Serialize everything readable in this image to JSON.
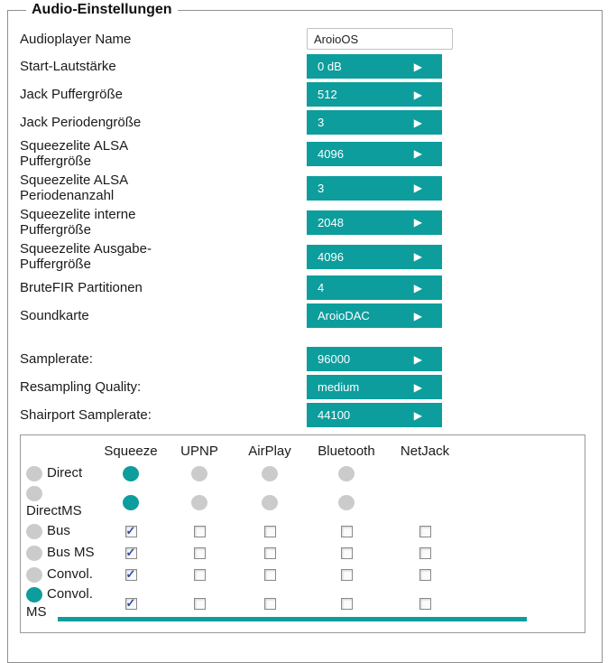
{
  "accent_color": "#0d9d9d",
  "panel": {
    "legend": "Audio-Einstellungen"
  },
  "icons": {
    "dropdown_arrow": "▶",
    "check_glyph": "✓"
  },
  "rows": [
    {
      "id": "audioplayer-name",
      "label": "Audioplayer Name",
      "type": "text-input",
      "value": "AroioOS"
    },
    {
      "id": "start-volume",
      "label": "Start-Lautstärke",
      "type": "dropdown",
      "value": "0 dB"
    },
    {
      "id": "jack-buffer-size",
      "label": "Jack Puffergröße",
      "type": "dropdown",
      "value": "512"
    },
    {
      "id": "jack-period-size",
      "label": "Jack Periodengröße",
      "type": "dropdown",
      "value": "3"
    },
    {
      "id": "squeezelite-alsa-buffer",
      "label": "Squeezelite ALSA Puffergröße",
      "type": "dropdown",
      "value": "4096"
    },
    {
      "id": "squeezelite-alsa-periods",
      "label": "Squeezelite ALSA Periodenanzahl",
      "type": "dropdown",
      "value": "3"
    },
    {
      "id": "squeezelite-internal-buffer",
      "label": "Squeezelite interne Puffergröße",
      "type": "dropdown",
      "value": "2048"
    },
    {
      "id": "squeezelite-output-buffer",
      "label": "Squeezelite Ausgabe-Puffergröße",
      "type": "dropdown",
      "value": "4096"
    },
    {
      "id": "brutefir-partitions",
      "label": "BruteFIR Partitionen",
      "type": "dropdown",
      "value": "4"
    },
    {
      "id": "soundcard",
      "label": "Soundkarte",
      "type": "dropdown",
      "value": "AroioDAC"
    },
    {
      "id": "samplerate",
      "label": "Samplerate:",
      "type": "dropdown",
      "value": "96000",
      "group_gap": true
    },
    {
      "id": "resampling-quality",
      "label": "Resampling Quality:",
      "type": "dropdown",
      "value": "medium"
    },
    {
      "id": "shairport-samplerate",
      "label": "Shairport Samplerate:",
      "type": "dropdown",
      "value": "44100"
    }
  ],
  "matrix": {
    "columns": [
      "Squeeze",
      "UPNP",
      "AirPlay",
      "Bluetooth",
      "NetJack"
    ],
    "rows": [
      {
        "id": "direct",
        "label": "Direct",
        "selected": false,
        "cells": [
          "radio-on",
          "radio-off",
          "radio-off",
          "radio-off",
          "none"
        ]
      },
      {
        "id": "directms",
        "label": "DirectMS",
        "selected": false,
        "cells": [
          "radio-on",
          "radio-off",
          "radio-off",
          "radio-off",
          "none"
        ]
      },
      {
        "id": "bus",
        "label": "Bus",
        "selected": false,
        "cells": [
          "cb-on",
          "cb-off",
          "cb-off",
          "cb-off",
          "cb-off"
        ]
      },
      {
        "id": "bus-ms",
        "label": "Bus MS",
        "selected": false,
        "cells": [
          "cb-on",
          "cb-off",
          "cb-off",
          "cb-off",
          "cb-off"
        ]
      },
      {
        "id": "convol",
        "label": "Convol.",
        "selected": false,
        "cells": [
          "cb-on",
          "cb-off",
          "cb-off",
          "cb-off",
          "cb-off"
        ]
      },
      {
        "id": "convol-ms",
        "label": "Convol. MS",
        "selected": true,
        "cells": [
          "cb-on",
          "cb-off",
          "cb-off",
          "cb-off",
          "cb-off"
        ]
      }
    ]
  }
}
